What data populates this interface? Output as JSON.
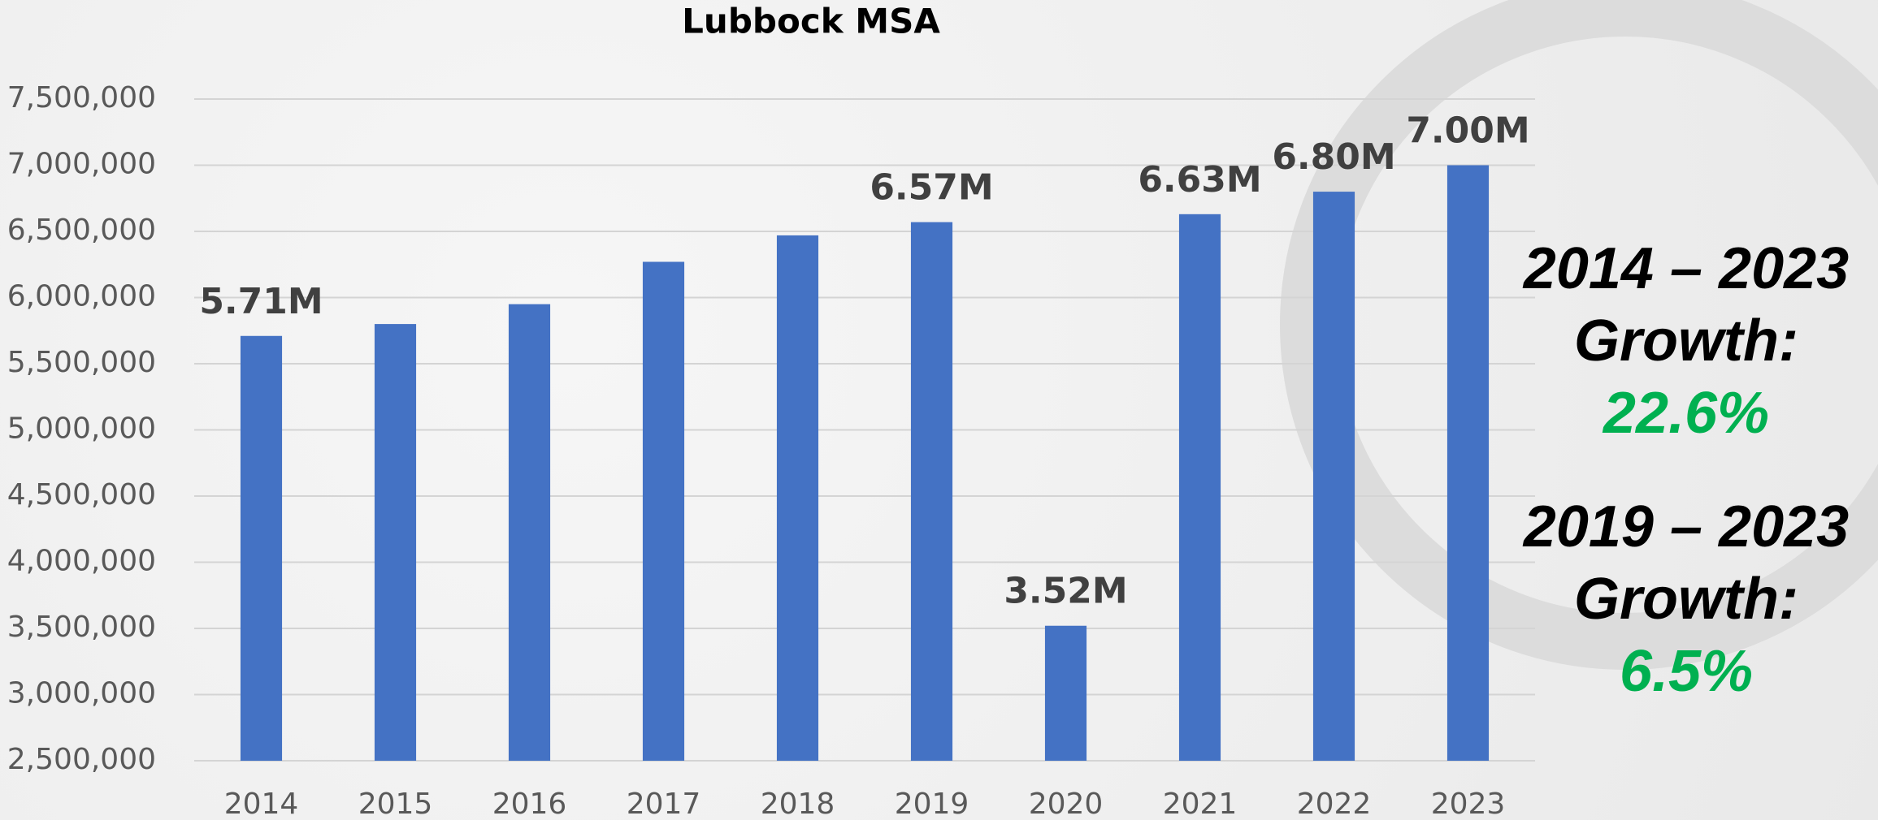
{
  "chart_data": {
    "type": "bar",
    "title": "Lubbock MSA",
    "categories": [
      "2014",
      "2015",
      "2016",
      "2017",
      "2018",
      "2019",
      "2020",
      "2021",
      "2022",
      "2023"
    ],
    "values": [
      5710000,
      5800000,
      5950000,
      6270000,
      6470000,
      6570000,
      3520000,
      6630000,
      6800000,
      7000000
    ],
    "value_labels": [
      "5.71M",
      null,
      null,
      null,
      null,
      "6.57M",
      "3.52M",
      "6.63M",
      "6.80M",
      "7.00M"
    ],
    "color": "#4472c4",
    "ylim": [
      2500000,
      7500000
    ],
    "yticks": [
      {
        "value": 2500000,
        "label": "2,500,000"
      },
      {
        "value": 3000000,
        "label": "3,000,000"
      },
      {
        "value": 3500000,
        "label": "3,500,000"
      },
      {
        "value": 4000000,
        "label": "4,000,000"
      },
      {
        "value": 4500000,
        "label": "4,500,000"
      },
      {
        "value": 5000000,
        "label": "5,000,000"
      },
      {
        "value": 5500000,
        "label": "5,500,000"
      },
      {
        "value": 6000000,
        "label": "6,000,000"
      },
      {
        "value": 6500000,
        "label": "6,500,000"
      },
      {
        "value": 7000000,
        "label": "7,000,000"
      },
      {
        "value": 7500000,
        "label": "7,500,000"
      }
    ],
    "grid": true,
    "annotations": [
      {
        "period": "2014 – 2023",
        "label": "Growth:",
        "growth": "22.6%"
      },
      {
        "period": "2019 – 2023",
        "label": "Growth:",
        "growth": "6.5%"
      }
    ]
  }
}
